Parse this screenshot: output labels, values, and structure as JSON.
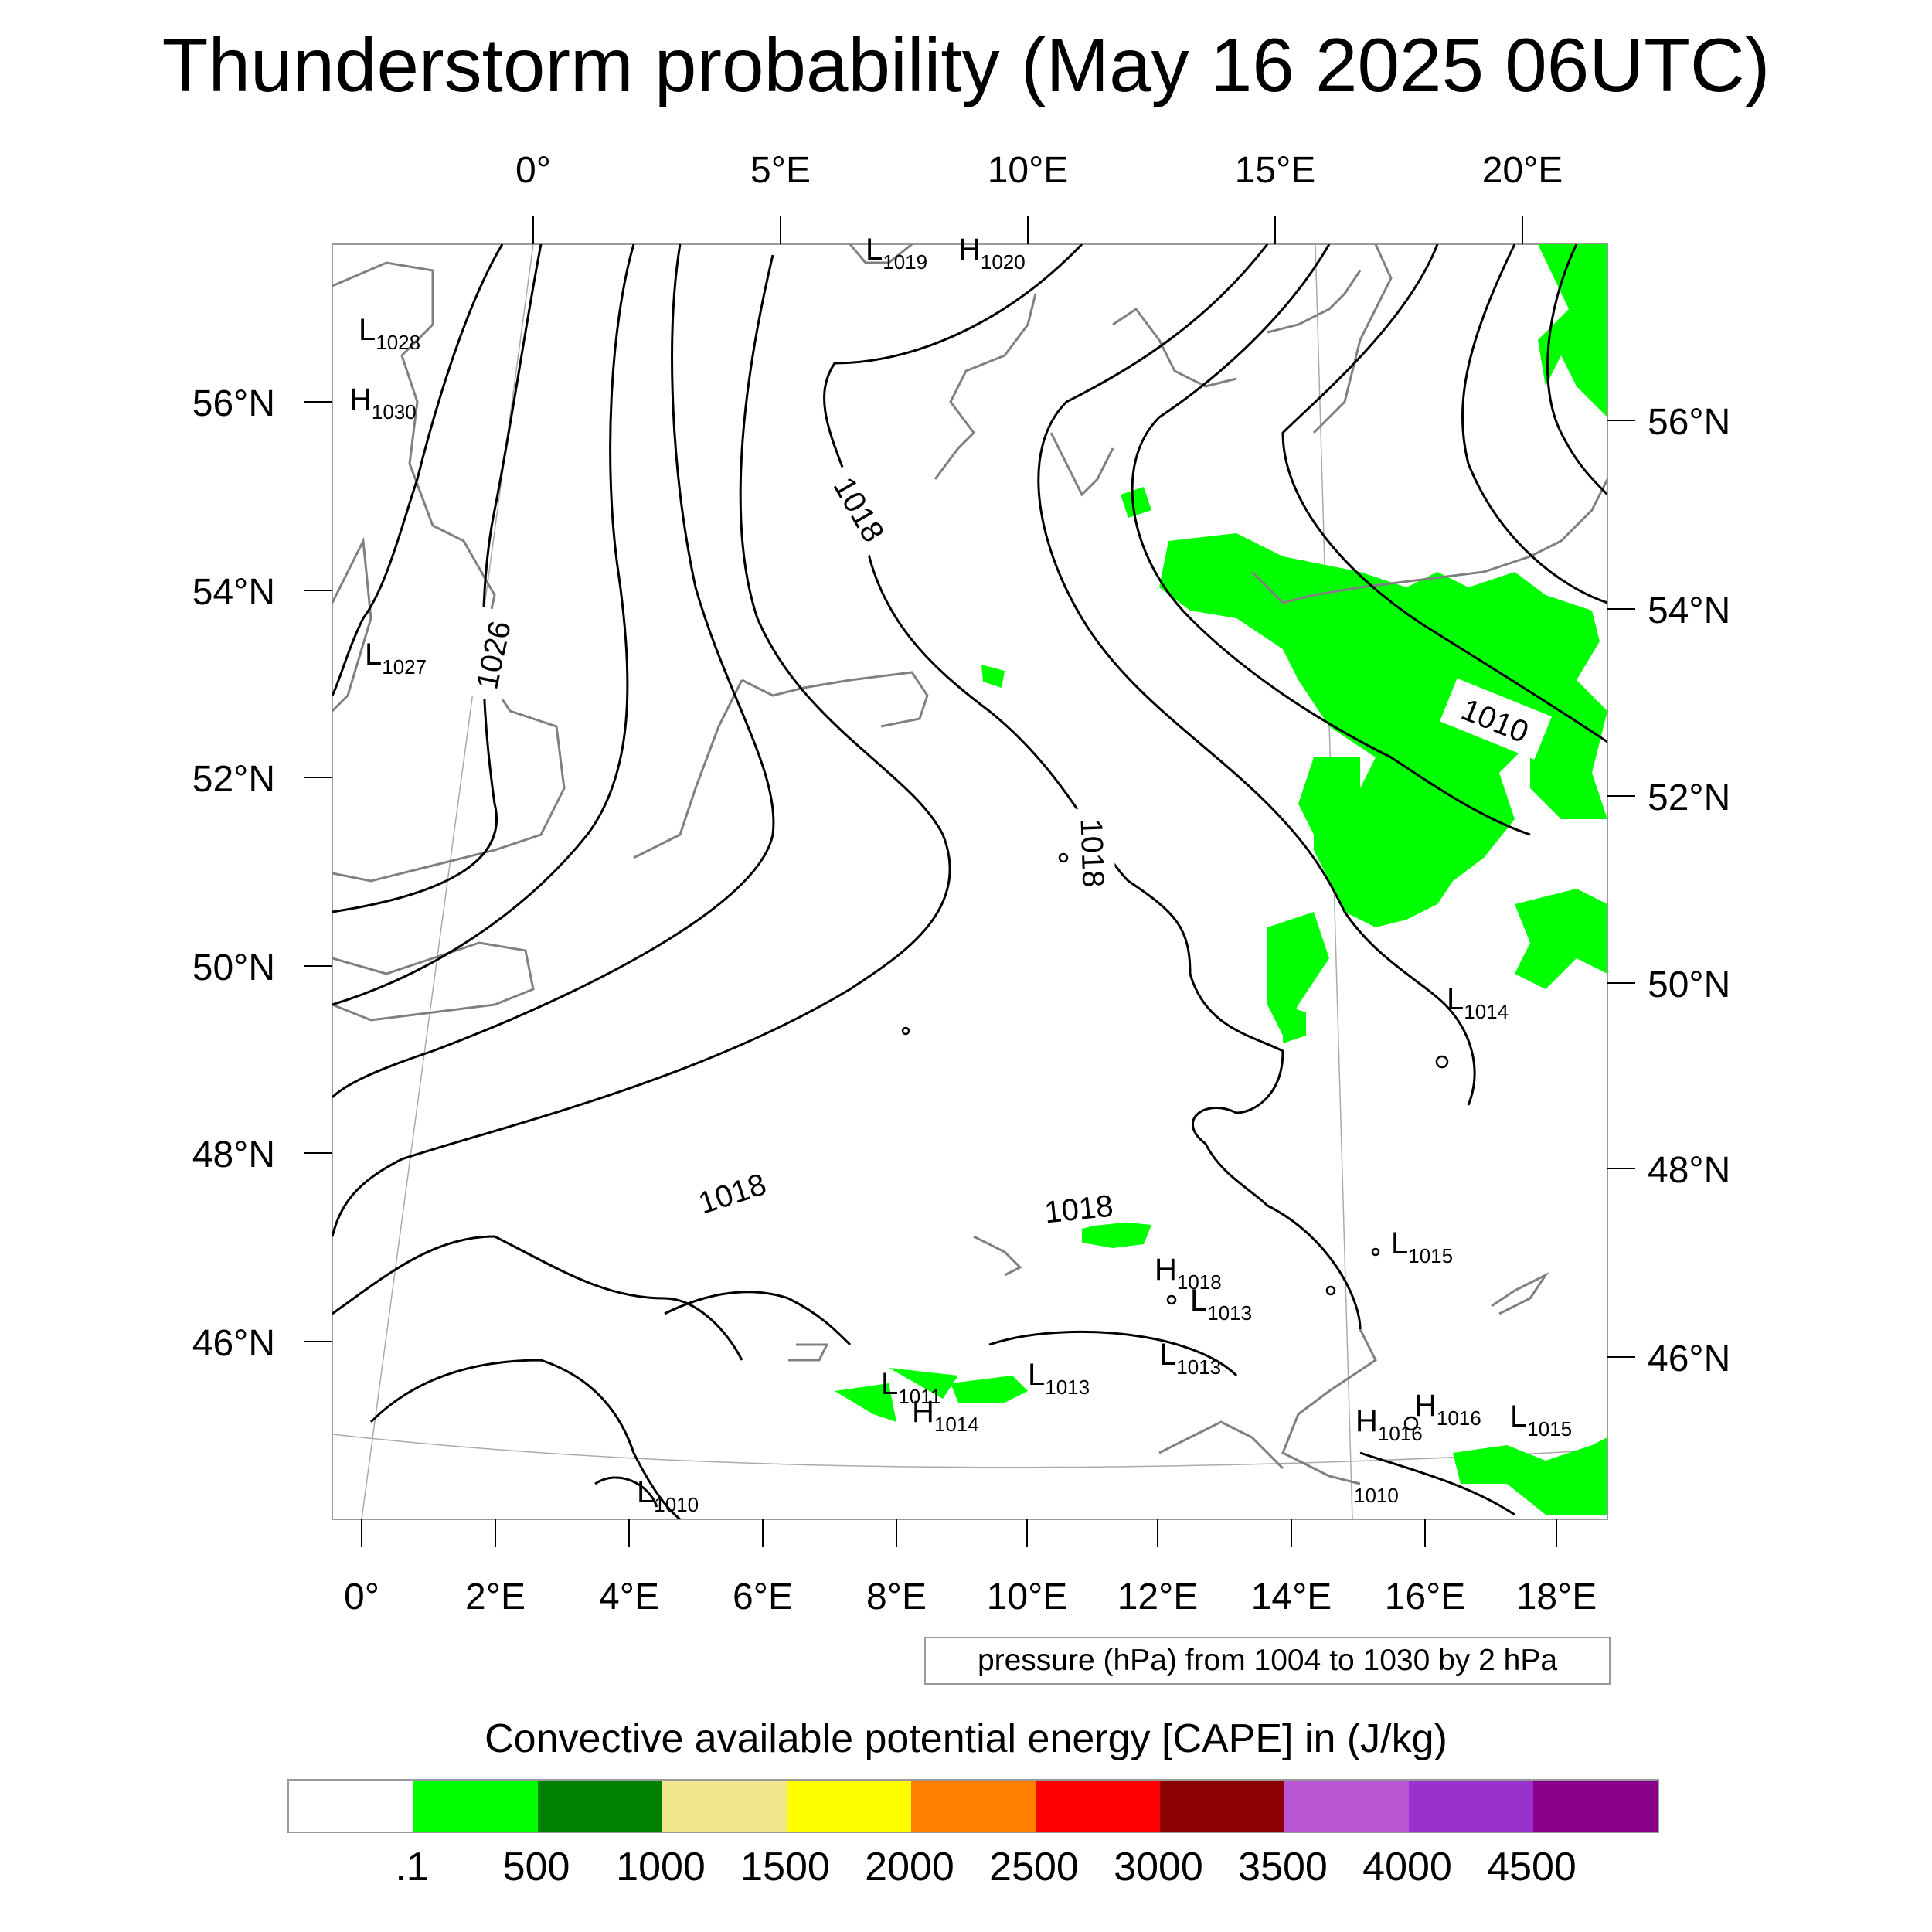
{
  "title": "Thunderstorm probability (May 16 2025 06UTC)",
  "info_box": "pressure (hPa) from 1004 to 1030 by 2 hPa",
  "legend_title": "Convective available potential energy [CAPE] in (J/kg)",
  "map": {
    "top_axis_labels": [
      "0°",
      "5°E",
      "10°E",
      "15°E",
      "20°E"
    ],
    "bottom_axis_labels": [
      "0°",
      "2°E",
      "4°E",
      "6°E",
      "8°E",
      "10°E",
      "12°E",
      "14°E",
      "16°E",
      "18°E"
    ],
    "left_axis_labels": [
      "56°N",
      "54°N",
      "52°N",
      "50°N",
      "48°N",
      "46°N"
    ],
    "right_axis_labels": [
      "56°N",
      "54°N",
      "52°N",
      "50°N",
      "48°N",
      "46°N"
    ],
    "isobar_labels": [
      "1018",
      "1026",
      "1018",
      "1010",
      "1018",
      "1018"
    ],
    "pressure_centers": [
      {
        "type": "L",
        "value": "1019"
      },
      {
        "type": "H",
        "value": "1020"
      },
      {
        "type": "L",
        "value": "1028"
      },
      {
        "type": "H",
        "value": "1030"
      },
      {
        "type": "L",
        "value": "1027"
      },
      {
        "type": "L",
        "value": "1014"
      },
      {
        "type": "L",
        "value": "1015"
      },
      {
        "type": "H",
        "value": "1018"
      },
      {
        "type": "L",
        "value": "1013"
      },
      {
        "type": "L",
        "value": "1013"
      },
      {
        "type": "L",
        "value": "1013"
      },
      {
        "type": "L",
        "value": "1011"
      },
      {
        "type": "H",
        "value": "1014"
      },
      {
        "type": "H",
        "value": "1016"
      },
      {
        "type": "H",
        "value": "1016"
      },
      {
        "type": "L",
        "value": "1015"
      },
      {
        "type": "L",
        "value": "1010"
      },
      {
        "type": "L",
        "value": "1010"
      }
    ],
    "colors": {
      "cape_green": "#00ff00",
      "coast": "#808080",
      "isobar": "#000000",
      "graticule": "#aaaaaa"
    }
  },
  "colorbar": {
    "colors": [
      "#ffffff",
      "#00ff00",
      "#008000",
      "#f0e68c",
      "#ffff00",
      "#ff8000",
      "#ff0000",
      "#8b0000",
      "#ba55d3",
      "#9932cc",
      "#8b008b"
    ],
    "labels": [
      ".1",
      "500",
      "1000",
      "1500",
      "2000",
      "2500",
      "3000",
      "3500",
      "4000",
      "4500"
    ]
  }
}
